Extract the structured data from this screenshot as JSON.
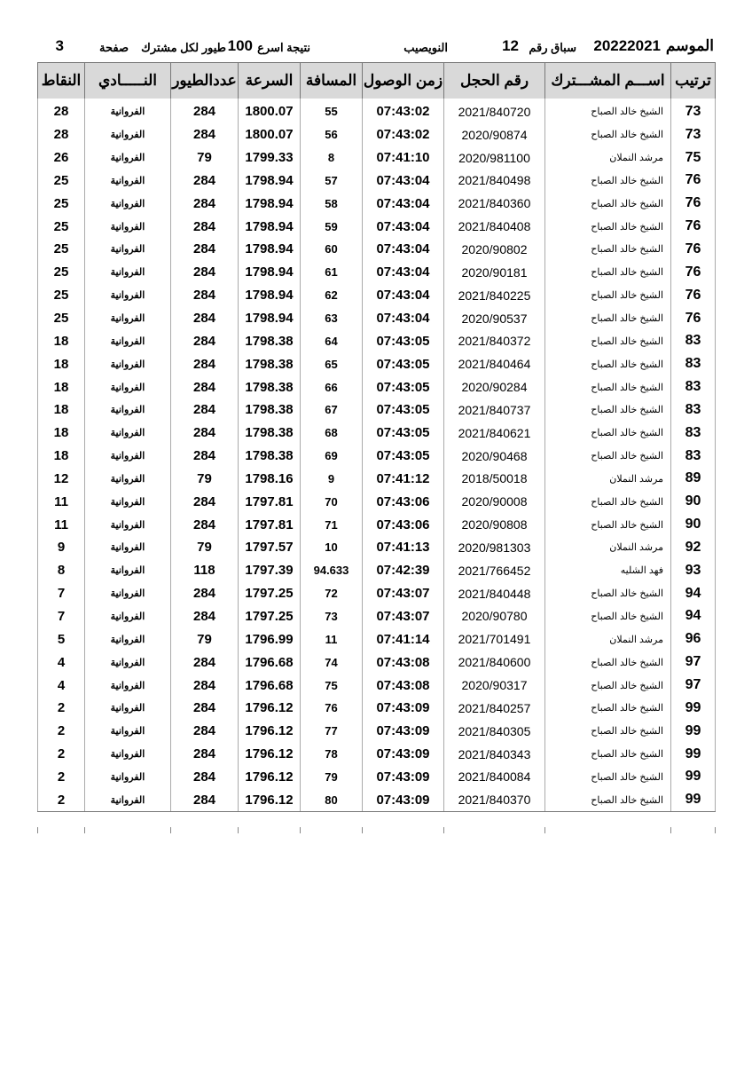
{
  "header": {
    "season_label": "الموسم",
    "season": "20222021",
    "race_label": "سباق رقم",
    "race_number": "12",
    "location": "النويصيب",
    "result_label": "نتيجة اسرع",
    "birds_count": "100",
    "per_member_label": "طيور لكل مشترك",
    "page_label": "صفحة",
    "page_number": "3"
  },
  "columns": [
    "ترتيب",
    "اســـم المشـــترك",
    "رقم الحجل",
    "زمن الوصول",
    "المسافة",
    "السرعة",
    "عددالطيور",
    "النـــــادي",
    "النقاط"
  ],
  "rows": [
    [
      "73",
      "الشيخ خالد الصباح",
      "2021/840720",
      "07:43:02",
      "55",
      "1800.07",
      "284",
      "الفروانية",
      "28"
    ],
    [
      "73",
      "الشيخ خالد الصباح",
      "2020/90874",
      "07:43:02",
      "56",
      "1800.07",
      "284",
      "الفروانية",
      "28"
    ],
    [
      "75",
      "مرشد النملان",
      "2020/981100",
      "07:41:10",
      "8",
      "1799.33",
      "79",
      "الفروانية",
      "26"
    ],
    [
      "76",
      "الشيخ خالد الصباح",
      "2021/840498",
      "07:43:04",
      "57",
      "1798.94",
      "284",
      "الفروانية",
      "25"
    ],
    [
      "76",
      "الشيخ خالد الصباح",
      "2021/840360",
      "07:43:04",
      "58",
      "1798.94",
      "284",
      "الفروانية",
      "25"
    ],
    [
      "76",
      "الشيخ خالد الصباح",
      "2021/840408",
      "07:43:04",
      "59",
      "1798.94",
      "284",
      "الفروانية",
      "25"
    ],
    [
      "76",
      "الشيخ خالد الصباح",
      "2020/90802",
      "07:43:04",
      "60",
      "1798.94",
      "284",
      "الفروانية",
      "25"
    ],
    [
      "76",
      "الشيخ خالد الصباح",
      "2020/90181",
      "07:43:04",
      "61",
      "1798.94",
      "284",
      "الفروانية",
      "25"
    ],
    [
      "76",
      "الشيخ خالد الصباح",
      "2021/840225",
      "07:43:04",
      "62",
      "1798.94",
      "284",
      "الفروانية",
      "25"
    ],
    [
      "76",
      "الشيخ خالد الصباح",
      "2020/90537",
      "07:43:04",
      "63",
      "1798.94",
      "284",
      "الفروانية",
      "25"
    ],
    [
      "83",
      "الشيخ خالد الصباح",
      "2021/840372",
      "07:43:05",
      "64",
      "1798.38",
      "284",
      "الفروانية",
      "18"
    ],
    [
      "83",
      "الشيخ خالد الصباح",
      "2021/840464",
      "07:43:05",
      "65",
      "1798.38",
      "284",
      "الفروانية",
      "18"
    ],
    [
      "83",
      "الشيخ خالد الصباح",
      "2020/90284",
      "07:43:05",
      "66",
      "1798.38",
      "284",
      "الفروانية",
      "18"
    ],
    [
      "83",
      "الشيخ خالد الصباح",
      "2021/840737",
      "07:43:05",
      "67",
      "1798.38",
      "284",
      "الفروانية",
      "18"
    ],
    [
      "83",
      "الشيخ خالد الصباح",
      "2021/840621",
      "07:43:05",
      "68",
      "1798.38",
      "284",
      "الفروانية",
      "18"
    ],
    [
      "83",
      "الشيخ خالد الصباح",
      "2020/90468",
      "07:43:05",
      "69",
      "1798.38",
      "284",
      "الفروانية",
      "18"
    ],
    [
      "89",
      "مرشد النملان",
      "2018/50018",
      "07:41:12",
      "9",
      "1798.16",
      "79",
      "الفروانية",
      "12"
    ],
    [
      "90",
      "الشيخ خالد الصباح",
      "2020/90008",
      "07:43:06",
      "70",
      "1797.81",
      "284",
      "الفروانية",
      "11"
    ],
    [
      "90",
      "الشيخ خالد الصباح",
      "2020/90808",
      "07:43:06",
      "71",
      "1797.81",
      "284",
      "الفروانية",
      "11"
    ],
    [
      "92",
      "مرشد النملان",
      "2020/981303",
      "07:41:13",
      "10",
      "1797.57",
      "79",
      "الفروانية",
      "9"
    ],
    [
      "93",
      "فهد الشليه",
      "2021/766452",
      "07:42:39",
      "94.633",
      "1797.39",
      "118",
      "الفروانية",
      "8"
    ],
    [
      "94",
      "الشيخ خالد الصباح",
      "2021/840448",
      "07:43:07",
      "72",
      "1797.25",
      "284",
      "الفروانية",
      "7"
    ],
    [
      "94",
      "الشيخ خالد الصباح",
      "2020/90780",
      "07:43:07",
      "73",
      "1797.25",
      "284",
      "الفروانية",
      "7"
    ],
    [
      "96",
      "مرشد النملان",
      "2021/701491",
      "07:41:14",
      "11",
      "1796.99",
      "79",
      "الفروانية",
      "5"
    ],
    [
      "97",
      "الشيخ خالد الصباح",
      "2021/840600",
      "07:43:08",
      "74",
      "1796.68",
      "284",
      "الفروانية",
      "4"
    ],
    [
      "97",
      "الشيخ خالد الصباح",
      "2020/90317",
      "07:43:08",
      "75",
      "1796.68",
      "284",
      "الفروانية",
      "4"
    ],
    [
      "99",
      "الشيخ خالد الصباح",
      "2021/840257",
      "07:43:09",
      "76",
      "1796.12",
      "284",
      "الفروانية",
      "2"
    ],
    [
      "99",
      "الشيخ خالد الصباح",
      "2021/840305",
      "07:43:09",
      "77",
      "1796.12",
      "284",
      "الفروانية",
      "2"
    ],
    [
      "99",
      "الشيخ خالد الصباح",
      "2021/840343",
      "07:43:09",
      "78",
      "1796.12",
      "284",
      "الفروانية",
      "2"
    ],
    [
      "99",
      "الشيخ خالد الصباح",
      "2021/840084",
      "07:43:09",
      "79",
      "1796.12",
      "284",
      "الفروانية",
      "2"
    ],
    [
      "99",
      "الشيخ خالد الصباح",
      "2021/840370",
      "07:43:09",
      "80",
      "1796.12",
      "284",
      "الفروانية",
      "2"
    ]
  ]
}
